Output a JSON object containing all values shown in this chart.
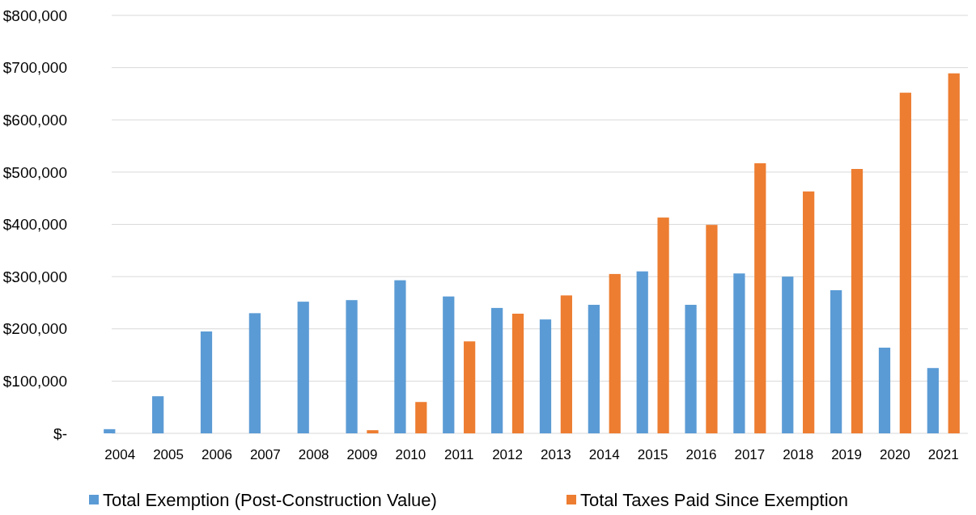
{
  "chart_data": {
    "type": "bar",
    "categories": [
      "2004",
      "2005",
      "2006",
      "2007",
      "2008",
      "2009",
      "2010",
      "2011",
      "2012",
      "2013",
      "2014",
      "2015",
      "2016",
      "2017",
      "2018",
      "2019",
      "2020",
      "2021"
    ],
    "series": [
      {
        "name": "Total Exemption (Post-Construction Value)",
        "color": "#5b9bd5",
        "values": [
          8000,
          71000,
          195000,
          230000,
          252000,
          255000,
          293000,
          262000,
          240000,
          218000,
          246000,
          310000,
          246000,
          306000,
          300000,
          274000,
          164000,
          125000
        ]
      },
      {
        "name": "Total Taxes Paid Since Exemption",
        "color": "#ed7d31",
        "values": [
          null,
          null,
          null,
          null,
          null,
          6000,
          60000,
          176000,
          229000,
          264000,
          305000,
          413000,
          399000,
          517000,
          463000,
          506000,
          652000,
          689000
        ]
      }
    ],
    "ylim": [
      0,
      800000
    ],
    "yticks": [
      {
        "value": 0,
        "label": "$-"
      },
      {
        "value": 100000,
        "label": "$100,000"
      },
      {
        "value": 200000,
        "label": "$200,000"
      },
      {
        "value": 300000,
        "label": "$300,000"
      },
      {
        "value": 400000,
        "label": "$400,000"
      },
      {
        "value": 500000,
        "label": "$500,000"
      },
      {
        "value": 600000,
        "label": "$600,000"
      },
      {
        "value": 700000,
        "label": "$700,000"
      },
      {
        "value": 800000,
        "label": "$800,000"
      }
    ],
    "grid": "y",
    "legend": "bottom"
  }
}
